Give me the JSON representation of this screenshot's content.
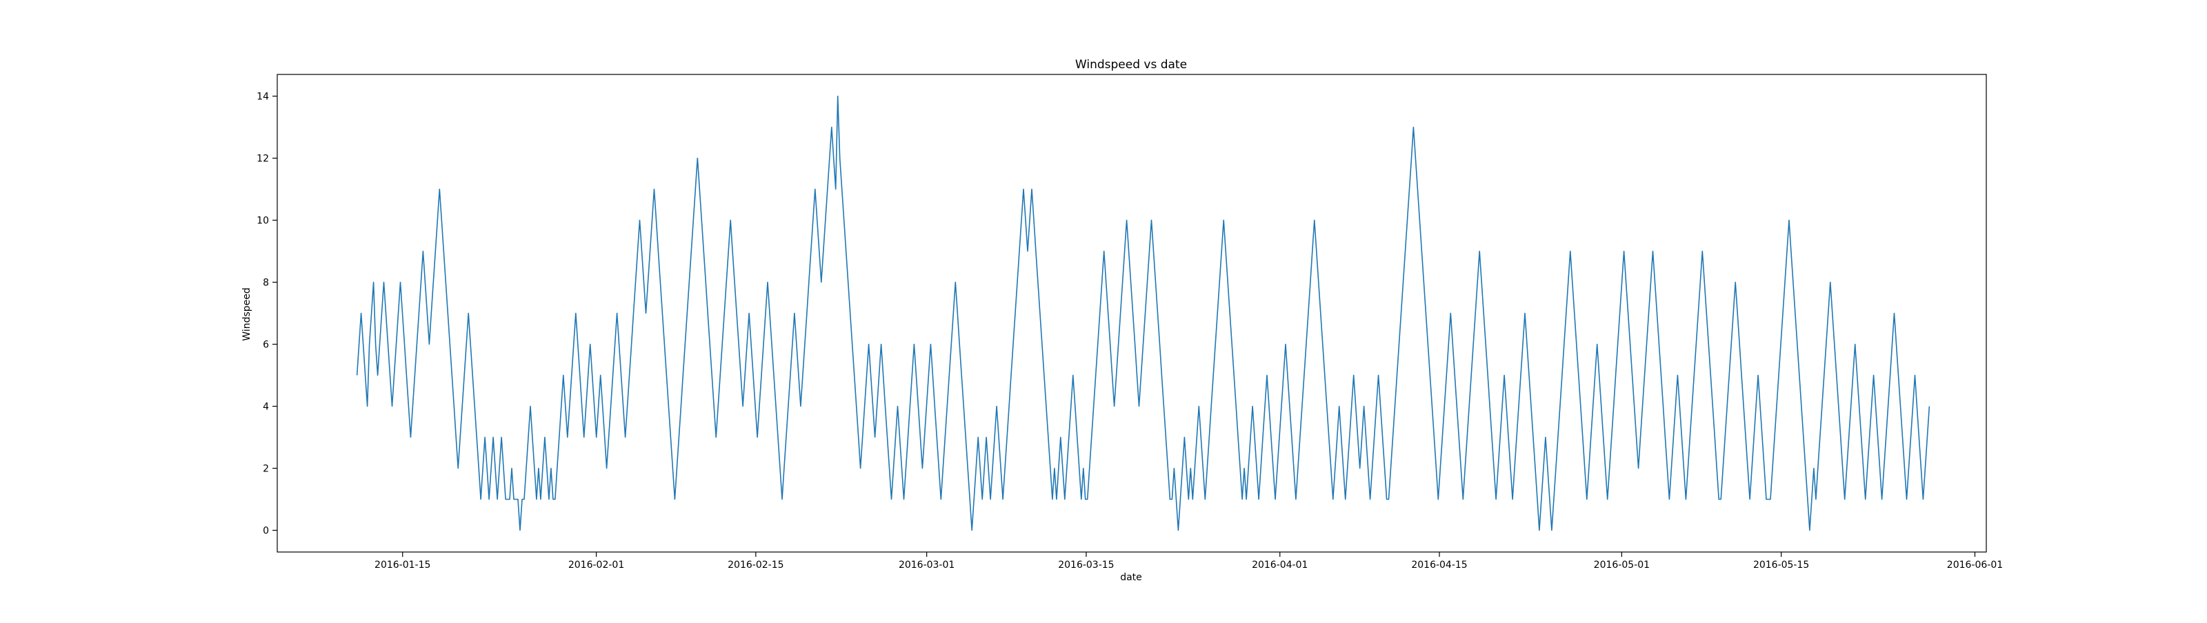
{
  "chart_data": {
    "type": "line",
    "title": "Windspeed vs date",
    "xlabel": "date",
    "ylabel": "Windspeed",
    "x_range": [
      "2016-01-04",
      "2016-06-02"
    ],
    "ylim": [
      -0.7,
      14.7
    ],
    "x_ticks": [
      "2016-01-15",
      "2016-02-01",
      "2016-02-15",
      "2016-03-01",
      "2016-03-15",
      "2016-04-01",
      "2016-04-15",
      "2016-05-01",
      "2016-05-15",
      "2016-06-01"
    ],
    "y_ticks": [
      0,
      2,
      4,
      6,
      8,
      10,
      12,
      14
    ],
    "grid": false,
    "legend": "none",
    "series": [
      {
        "color": "#1f77b4",
        "x_start": "2016-01-11",
        "x_end": "2016-05-28",
        "sample_interval": "30 minutes",
        "values": [
          5,
          6,
          7,
          6,
          5,
          4,
          6,
          7,
          8,
          6,
          5,
          6,
          7,
          8,
          7,
          6,
          5,
          4,
          5,
          6,
          7,
          8,
          7,
          6,
          5,
          4,
          3,
          4,
          5,
          6,
          7,
          8,
          9,
          8,
          7,
          6,
          7,
          8,
          9,
          10,
          11,
          10,
          9,
          8,
          7,
          6,
          5,
          4,
          3,
          2,
          3,
          4,
          5,
          6,
          7,
          6,
          5,
          4,
          3,
          2,
          1,
          2,
          3,
          2,
          1,
          2,
          3,
          2,
          1,
          2,
          3,
          2,
          1,
          1,
          1,
          2,
          1,
          1,
          1,
          0,
          1,
          1,
          2,
          3,
          4,
          3,
          2,
          1,
          2,
          1,
          2,
          3,
          2,
          1,
          2,
          1,
          1,
          2,
          3,
          4,
          5,
          4,
          3,
          4,
          5,
          6,
          7,
          6,
          5,
          4,
          3,
          4,
          5,
          6,
          5,
          4,
          3,
          4,
          5,
          4,
          3,
          2,
          3,
          4,
          5,
          6,
          7,
          6,
          5,
          4,
          3,
          4,
          5,
          6,
          7,
          8,
          9,
          10,
          9,
          8,
          7,
          8,
          9,
          10,
          11,
          10,
          9,
          8,
          7,
          6,
          5,
          4,
          3,
          2,
          1,
          2,
          3,
          4,
          5,
          6,
          7,
          8,
          9,
          10,
          11,
          12,
          11,
          10,
          9,
          8,
          7,
          6,
          5,
          4,
          3,
          4,
          5,
          6,
          7,
          8,
          9,
          10,
          9,
          8,
          7,
          6,
          5,
          4,
          5,
          6,
          7,
          6,
          5,
          4,
          3,
          4,
          5,
          6,
          7,
          8,
          7,
          6,
          5,
          4,
          3,
          2,
          1,
          2,
          3,
          4,
          5,
          6,
          7,
          6,
          5,
          4,
          5,
          6,
          7,
          8,
          9,
          10,
          11,
          10,
          9,
          8,
          9,
          10,
          11,
          12,
          13,
          12,
          11,
          14,
          12,
          11,
          10,
          9,
          8,
          7,
          6,
          5,
          4,
          3,
          2,
          3,
          4,
          5,
          6,
          5,
          4,
          3,
          4,
          5,
          6,
          5,
          4,
          3,
          2,
          1,
          2,
          3,
          4,
          3,
          2,
          1,
          2,
          3,
          4,
          5,
          6,
          5,
          4,
          3,
          2,
          3,
          4,
          5,
          6,
          5,
          4,
          3,
          2,
          1,
          2,
          3,
          4,
          5,
          6,
          7,
          8,
          7,
          6,
          5,
          4,
          3,
          2,
          1,
          0,
          1,
          2,
          3,
          2,
          1,
          2,
          3,
          2,
          1,
          2,
          3,
          4,
          3,
          2,
          1,
          2,
          3,
          4,
          5,
          6,
          7,
          8,
          9,
          10,
          11,
          10,
          9,
          10,
          11,
          10,
          9,
          8,
          7,
          6,
          5,
          4,
          3,
          2,
          1,
          2,
          1,
          2,
          3,
          2,
          1,
          2,
          3,
          4,
          5,
          4,
          3,
          2,
          1,
          2,
          1,
          1,
          2,
          3,
          4,
          5,
          6,
          7,
          8,
          9,
          8,
          7,
          6,
          5,
          4,
          5,
          6,
          7,
          8,
          9,
          10,
          9,
          8,
          7,
          6,
          5,
          4,
          5,
          6,
          7,
          8,
          9,
          10,
          9,
          8,
          7,
          6,
          5,
          4,
          3,
          2,
          1,
          1,
          2,
          1,
          0,
          1,
          2,
          3,
          2,
          1,
          2,
          1,
          2,
          3,
          4,
          3,
          2,
          1,
          2,
          3,
          4,
          5,
          6,
          7,
          8,
          9,
          10,
          9,
          8,
          7,
          6,
          5,
          4,
          3,
          2,
          1,
          2,
          1,
          2,
          3,
          4,
          3,
          2,
          1,
          2,
          3,
          4,
          5,
          4,
          3,
          2,
          1,
          2,
          3,
          4,
          5,
          6,
          5,
          4,
          3,
          2,
          1,
          2,
          3,
          4,
          5,
          6,
          7,
          8,
          9,
          10,
          9,
          8,
          7,
          6,
          5,
          4,
          3,
          2,
          1,
          2,
          3,
          4,
          3,
          2,
          1,
          2,
          3,
          4,
          5,
          4,
          3,
          2,
          3,
          4,
          3,
          2,
          1,
          2,
          3,
          4,
          5,
          4,
          3,
          2,
          1,
          1,
          2,
          3,
          4,
          5,
          6,
          7,
          8,
          9,
          10,
          11,
          12,
          13,
          12,
          11,
          10,
          9,
          8,
          7,
          6,
          5,
          4,
          3,
          2,
          1,
          2,
          3,
          4,
          5,
          6,
          7,
          6,
          5,
          4,
          3,
          2,
          1,
          2,
          3,
          4,
          5,
          6,
          7,
          8,
          9,
          8,
          7,
          6,
          5,
          4,
          3,
          2,
          1,
          2,
          3,
          4,
          5,
          4,
          3,
          2,
          1,
          2,
          3,
          4,
          5,
          6,
          7,
          6,
          5,
          4,
          3,
          2,
          1,
          0,
          1,
          2,
          3,
          2,
          1,
          0,
          1,
          2,
          3,
          4,
          5,
          6,
          7,
          8,
          9,
          8,
          7,
          6,
          5,
          4,
          3,
          2,
          1,
          2,
          3,
          4,
          5,
          6,
          5,
          4,
          3,
          2,
          1,
          2,
          3,
          4,
          5,
          6,
          7,
          8,
          9,
          8,
          7,
          6,
          5,
          4,
          3,
          2,
          3,
          4,
          5,
          6,
          7,
          8,
          9,
          8,
          7,
          6,
          5,
          4,
          3,
          2,
          1,
          2,
          3,
          4,
          5,
          4,
          3,
          2,
          1,
          2,
          3,
          4,
          5,
          6,
          7,
          8,
          9,
          8,
          7,
          6,
          5,
          4,
          3,
          2,
          1,
          1,
          2,
          3,
          4,
          5,
          6,
          7,
          8,
          7,
          6,
          5,
          4,
          3,
          2,
          1,
          2,
          3,
          4,
          5,
          4,
          3,
          2,
          1,
          1,
          1,
          2,
          3,
          4,
          5,
          6,
          7,
          8,
          9,
          10,
          9,
          8,
          7,
          6,
          5,
          4,
          3,
          2,
          1,
          0,
          1,
          2,
          1,
          2,
          3,
          4,
          5,
          6,
          7,
          8,
          7,
          6,
          5,
          4,
          3,
          2,
          1,
          2,
          3,
          4,
          5,
          6,
          5,
          4,
          3,
          2,
          1,
          2,
          3,
          4,
          5,
          4,
          3,
          2,
          1,
          2,
          3,
          4,
          5,
          6,
          7,
          6,
          5,
          4,
          3,
          2,
          1,
          2,
          3,
          4,
          5,
          4,
          3,
          2,
          1,
          2,
          3,
          4
        ]
      }
    ]
  }
}
